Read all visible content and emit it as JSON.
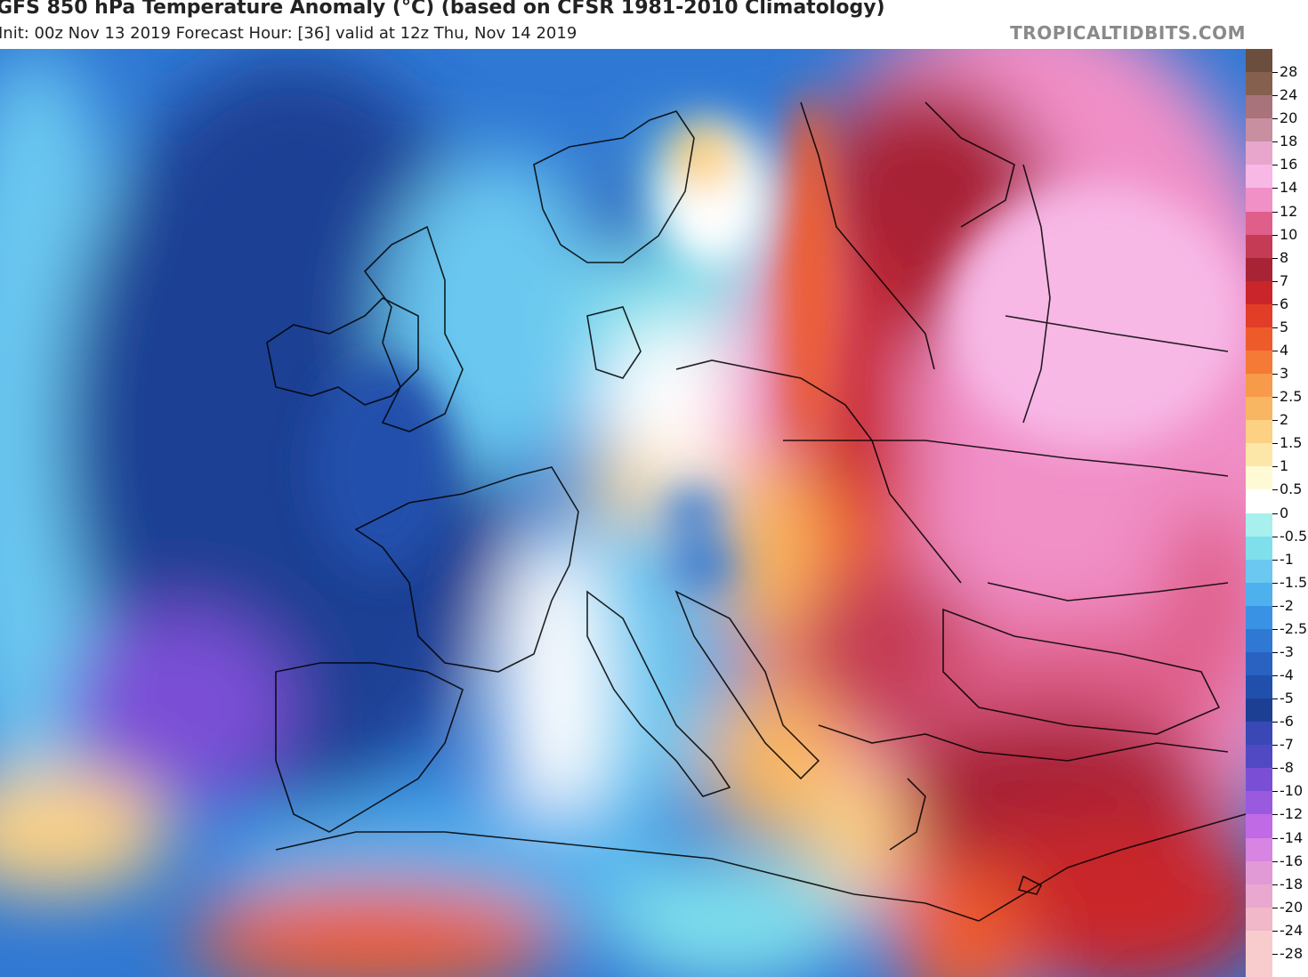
{
  "title": "GFS 850 hPa Temperature Anomaly (°C) (based on CFSR 1981-2010 Climatology)",
  "subtitle": "Init: 00z Nov 13 2019   Forecast Hour: [36]   valid at 12z Thu, Nov 14 2019",
  "brand": "TROPICALTIDBITS.COM",
  "colorbar": {
    "levels": [
      {
        "label": "28",
        "color": "#6b4e3d"
      },
      {
        "label": "24",
        "color": "#86604f"
      },
      {
        "label": "20",
        "color": "#a8737a"
      },
      {
        "label": "18",
        "color": "#c78fa0"
      },
      {
        "label": "16",
        "color": "#e8a6cc"
      },
      {
        "label": "14",
        "color": "#f7b8e6"
      },
      {
        "label": "12",
        "color": "#f18fc7"
      },
      {
        "label": "10",
        "color": "#df5f8a"
      },
      {
        "label": "8",
        "color": "#c53a55"
      },
      {
        "label": "7",
        "color": "#a82336"
      },
      {
        "label": "6",
        "color": "#c9252a"
      },
      {
        "label": "5",
        "color": "#e23d26"
      },
      {
        "label": "4",
        "color": "#ee5b2b"
      },
      {
        "label": "3",
        "color": "#f47a36"
      },
      {
        "label": "2.5",
        "color": "#f79a4a"
      },
      {
        "label": "2",
        "color": "#f9b662"
      },
      {
        "label": "1.5",
        "color": "#fcd184"
      },
      {
        "label": "1",
        "color": "#fde7a8"
      },
      {
        "label": "0.5",
        "color": "#fffad6"
      },
      {
        "label": "0",
        "color": "#ffffff"
      },
      {
        "label": "-0.5",
        "color": "#a8f0ee"
      },
      {
        "label": "-1",
        "color": "#7fe0ec"
      },
      {
        "label": "-1.5",
        "color": "#6bc8f0"
      },
      {
        "label": "-2",
        "color": "#4fb0ee"
      },
      {
        "label": "-2.5",
        "color": "#3a92e4"
      },
      {
        "label": "-3",
        "color": "#2f78d4"
      },
      {
        "label": "-4",
        "color": "#2962c0"
      },
      {
        "label": "-5",
        "color": "#2050ac"
      },
      {
        "label": "-6",
        "color": "#1c3f94"
      },
      {
        "label": "-7",
        "color": "#3a48b6"
      },
      {
        "label": "-8",
        "color": "#5148c4"
      },
      {
        "label": "-10",
        "color": "#7a4fd6"
      },
      {
        "label": "-12",
        "color": "#9a5ae0"
      },
      {
        "label": "-14",
        "color": "#c06ae6"
      },
      {
        "label": "-16",
        "color": "#d884e2"
      },
      {
        "label": "-18",
        "color": "#e29ad6"
      },
      {
        "label": "-20",
        "color": "#e8a8cf"
      },
      {
        "label": "-24",
        "color": "#f0b8c8"
      },
      {
        "label": "-28",
        "color": "#f8cccc"
      }
    ]
  }
}
